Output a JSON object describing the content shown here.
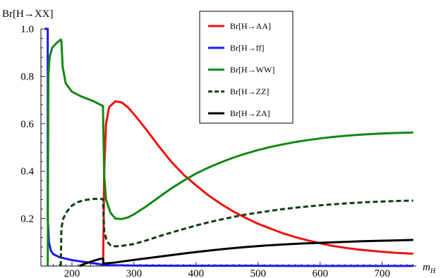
{
  "chart_data": {
    "type": "line",
    "ylabel": "Br[H→XX]",
    "xlabel": "m",
    "xlabel_sub": "H",
    "xlim": [
      150,
      755
    ],
    "ylim": [
      0,
      1.0
    ],
    "x_ticks": [
      200,
      300,
      400,
      500,
      600,
      700
    ],
    "y_ticks": [
      0.2,
      0.4,
      0.6,
      0.8,
      1.0
    ],
    "y_tick_labels": [
      "0.2",
      "0.4",
      "0.6",
      "0.8",
      "1.0"
    ],
    "grid": false,
    "legend_position": "top-right",
    "series": [
      {
        "name": "Br[H→AA]",
        "color": "#ee1111",
        "dash": "solid",
        "points": [
          [
            250,
            0
          ],
          [
            250.5,
            0.05
          ],
          [
            252,
            0.4
          ],
          [
            255,
            0.6
          ],
          [
            260,
            0.67
          ],
          [
            270,
            0.695
          ],
          [
            280,
            0.69
          ],
          [
            290,
            0.67
          ],
          [
            300,
            0.64
          ],
          [
            320,
            0.575
          ],
          [
            340,
            0.505
          ],
          [
            360,
            0.44
          ],
          [
            380,
            0.385
          ],
          [
            400,
            0.34
          ],
          [
            420,
            0.298
          ],
          [
            440,
            0.262
          ],
          [
            460,
            0.23
          ],
          [
            480,
            0.203
          ],
          [
            500,
            0.178
          ],
          [
            520,
            0.158
          ],
          [
            540,
            0.138
          ],
          [
            560,
            0.122
          ],
          [
            580,
            0.108
          ],
          [
            600,
            0.096
          ],
          [
            620,
            0.085
          ],
          [
            640,
            0.077
          ],
          [
            660,
            0.07
          ],
          [
            680,
            0.065
          ],
          [
            700,
            0.06
          ],
          [
            720,
            0.056
          ],
          [
            750,
            0.052
          ]
        ]
      },
      {
        "name": "Br[H→ff]",
        "color": "#1a1aee",
        "dash": "solid",
        "points": [
          [
            156,
            1.0
          ],
          [
            161,
            1.0
          ],
          [
            161,
            0.2
          ],
          [
            163,
            0.1
          ],
          [
            166,
            0.065
          ],
          [
            170,
            0.05
          ],
          [
            180,
            0.037
          ],
          [
            200,
            0.025
          ],
          [
            220,
            0.017
          ],
          [
            240,
            0.01
          ],
          [
            250,
            0.005
          ],
          [
            251,
            0.004
          ],
          [
            300,
            0.002
          ],
          [
            400,
            0.001
          ],
          [
            500,
            0.001
          ],
          [
            600,
            0.0005
          ],
          [
            750,
            0.0003
          ]
        ]
      },
      {
        "name": "Br[H→WW]",
        "color": "#118811",
        "dash": "solid",
        "points": [
          [
            161,
            0
          ],
          [
            162,
            0.8
          ],
          [
            164,
            0.88
          ],
          [
            168,
            0.92
          ],
          [
            175,
            0.94
          ],
          [
            182,
            0.955
          ],
          [
            183,
            0.95
          ],
          [
            185,
            0.84
          ],
          [
            190,
            0.77
          ],
          [
            200,
            0.735
          ],
          [
            215,
            0.715
          ],
          [
            225,
            0.705
          ],
          [
            235,
            0.695
          ],
          [
            242,
            0.685
          ],
          [
            250,
            0.675
          ],
          [
            250.5,
            0.6
          ],
          [
            252,
            0.38
          ],
          [
            255,
            0.28
          ],
          [
            262,
            0.225
          ],
          [
            270,
            0.2
          ],
          [
            280,
            0.198
          ],
          [
            290,
            0.205
          ],
          [
            300,
            0.218
          ],
          [
            320,
            0.252
          ],
          [
            340,
            0.29
          ],
          [
            360,
            0.327
          ],
          [
            380,
            0.36
          ],
          [
            400,
            0.39
          ],
          [
            420,
            0.415
          ],
          [
            440,
            0.437
          ],
          [
            460,
            0.457
          ],
          [
            480,
            0.474
          ],
          [
            500,
            0.489
          ],
          [
            520,
            0.502
          ],
          [
            540,
            0.513
          ],
          [
            560,
            0.523
          ],
          [
            580,
            0.531
          ],
          [
            600,
            0.538
          ],
          [
            620,
            0.544
          ],
          [
            640,
            0.549
          ],
          [
            660,
            0.553
          ],
          [
            680,
            0.556
          ],
          [
            700,
            0.559
          ],
          [
            720,
            0.561
          ],
          [
            750,
            0.563
          ]
        ]
      },
      {
        "name": "Br[H→ZZ]",
        "color": "#0d3f0d",
        "dash": "dashed",
        "points": [
          [
            182,
            0
          ],
          [
            183,
            0.16
          ],
          [
            186,
            0.2
          ],
          [
            192,
            0.23
          ],
          [
            200,
            0.255
          ],
          [
            210,
            0.27
          ],
          [
            220,
            0.278
          ],
          [
            235,
            0.283
          ],
          [
            250,
            0.283
          ],
          [
            250.5,
            0.24
          ],
          [
            252,
            0.15
          ],
          [
            256,
            0.105
          ],
          [
            262,
            0.088
          ],
          [
            270,
            0.083
          ],
          [
            280,
            0.085
          ],
          [
            300,
            0.093
          ],
          [
            320,
            0.108
          ],
          [
            340,
            0.125
          ],
          [
            360,
            0.141
          ],
          [
            380,
            0.156
          ],
          [
            400,
            0.171
          ],
          [
            420,
            0.184
          ],
          [
            440,
            0.196
          ],
          [
            460,
            0.207
          ],
          [
            480,
            0.217
          ],
          [
            500,
            0.225
          ],
          [
            520,
            0.233
          ],
          [
            540,
            0.24
          ],
          [
            560,
            0.246
          ],
          [
            580,
            0.251
          ],
          [
            600,
            0.256
          ],
          [
            620,
            0.26
          ],
          [
            640,
            0.264
          ],
          [
            660,
            0.267
          ],
          [
            680,
            0.27
          ],
          [
            700,
            0.272
          ],
          [
            720,
            0.274
          ],
          [
            750,
            0.276
          ]
        ]
      },
      {
        "name": "Br[H→ZA]",
        "color": "#000000",
        "dash": "solid",
        "points": [
          [
            212,
            0
          ],
          [
            220,
            0.009
          ],
          [
            230,
            0.018
          ],
          [
            240,
            0.026
          ],
          [
            245,
            0.03
          ],
          [
            250,
            0.032
          ],
          [
            251,
            0.01
          ],
          [
            255,
            0.011
          ],
          [
            270,
            0.015
          ],
          [
            300,
            0.026
          ],
          [
            330,
            0.036
          ],
          [
            360,
            0.046
          ],
          [
            390,
            0.056
          ],
          [
            420,
            0.065
          ],
          [
            450,
            0.073
          ],
          [
            480,
            0.08
          ],
          [
            510,
            0.086
          ],
          [
            540,
            0.091
          ],
          [
            570,
            0.095
          ],
          [
            600,
            0.098
          ],
          [
            630,
            0.101
          ],
          [
            660,
            0.104
          ],
          [
            690,
            0.106
          ],
          [
            720,
            0.108
          ],
          [
            750,
            0.11
          ]
        ]
      }
    ]
  }
}
